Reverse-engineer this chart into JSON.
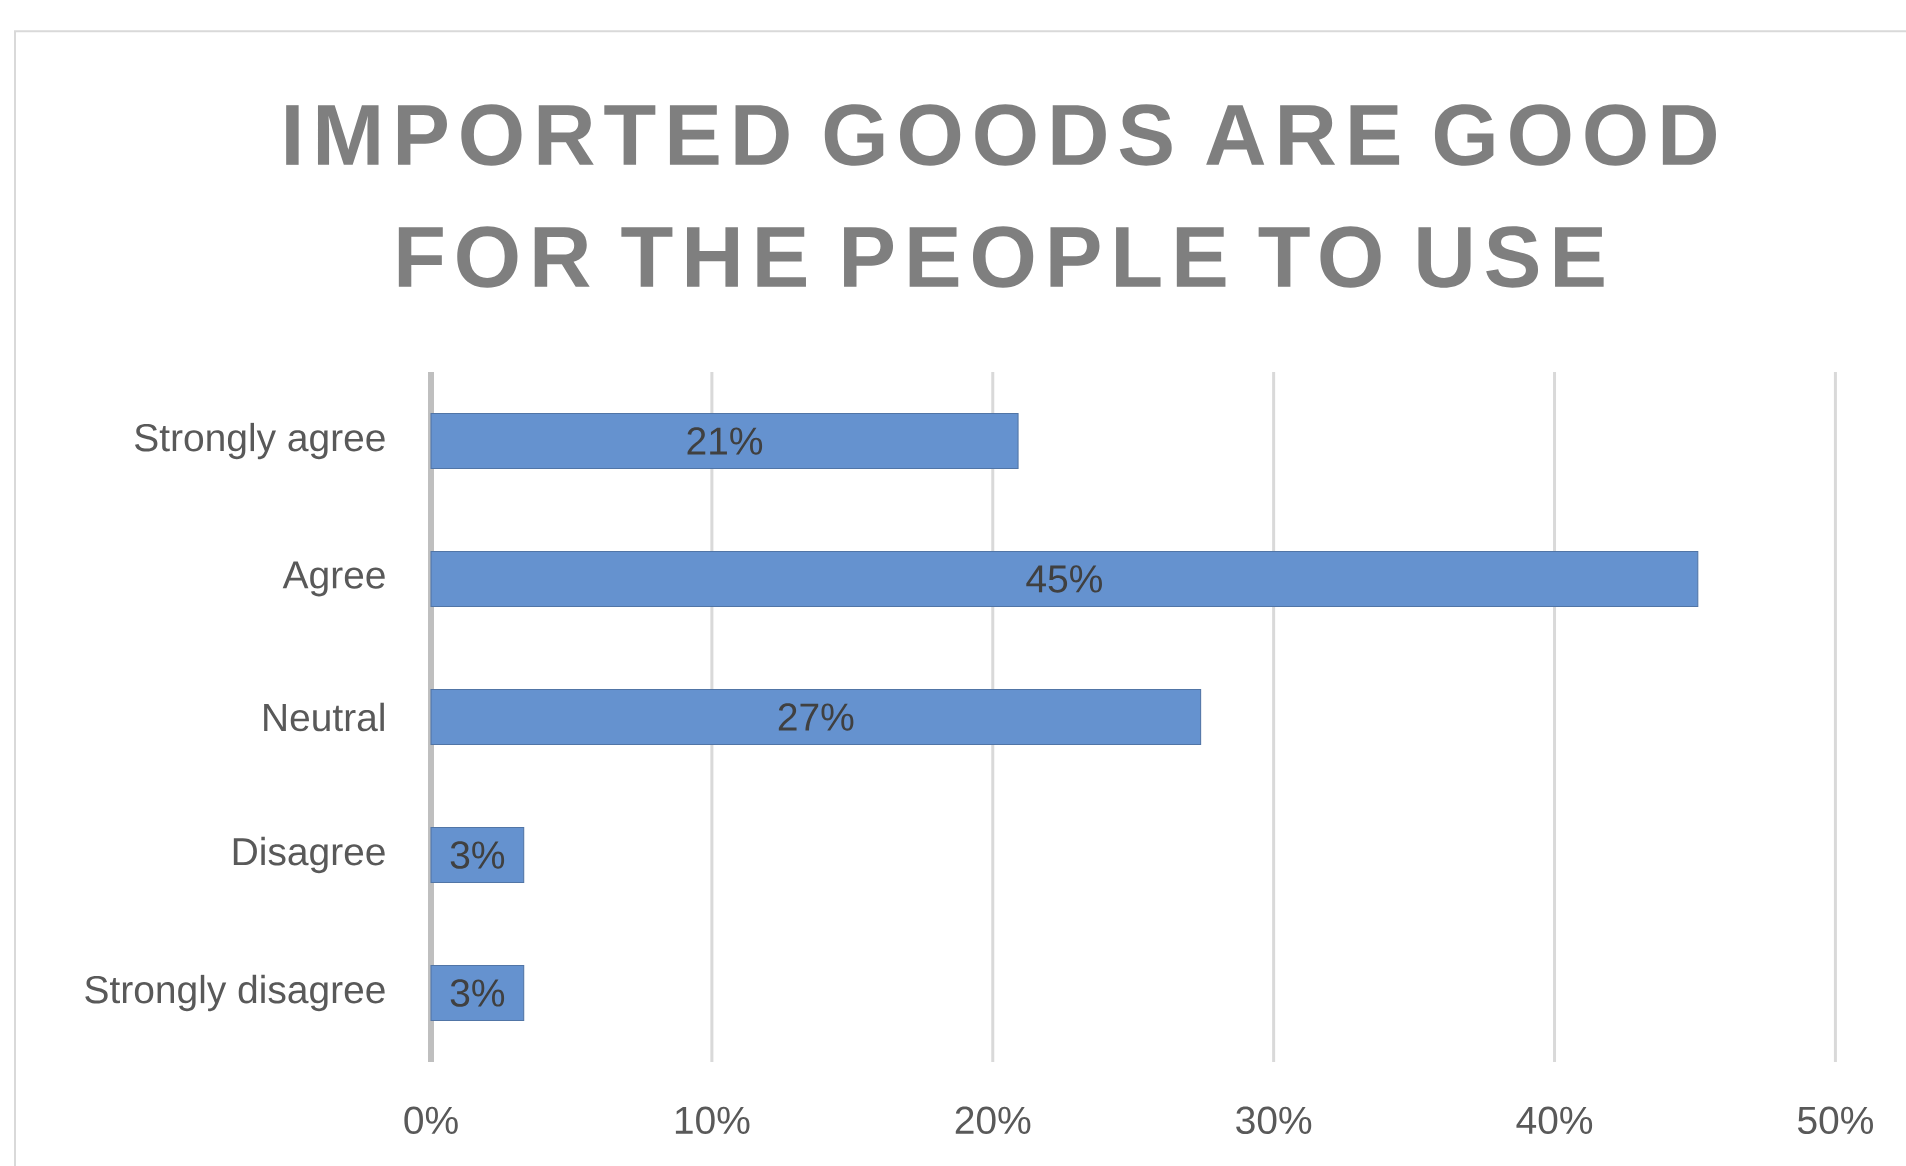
{
  "chart_data": {
    "type": "bar",
    "orientation": "horizontal",
    "title": "IMPORTED GOODS ARE GOOD FOR THE PEOPLE TO USE",
    "categories": [
      "Strongly agree",
      "Agree",
      "Neutral",
      "Disagree",
      "Strongly disagree"
    ],
    "values": [
      20.9,
      45.1,
      27.4,
      3.3,
      3.3
    ],
    "value_labels": [
      "21%",
      "45%",
      "27%",
      "3%",
      "3%"
    ],
    "color": "#6592cf",
    "xlim": [
      0,
      50
    ],
    "xticks": [
      {
        "value": 0,
        "label": "0%"
      },
      {
        "value": 10,
        "label": "10%"
      },
      {
        "value": 20,
        "label": "20%"
      },
      {
        "value": 30,
        "label": "30%"
      },
      {
        "value": 40,
        "label": "40%"
      },
      {
        "value": 50,
        "label": "50%"
      }
    ],
    "grid": "x"
  }
}
